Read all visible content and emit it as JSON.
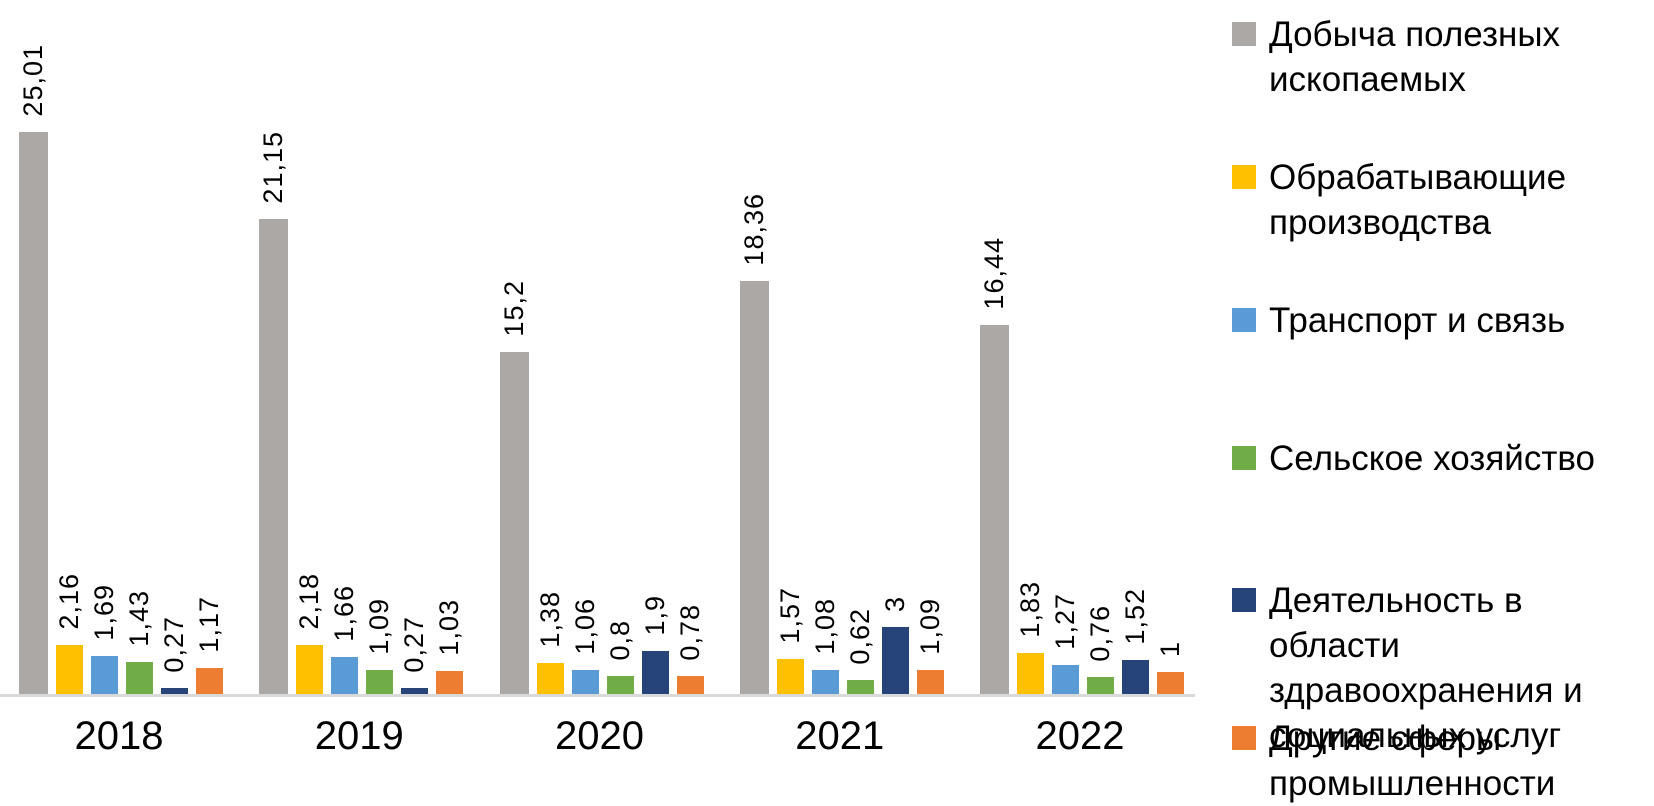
{
  "chart_data": {
    "type": "bar",
    "title": "",
    "xlabel": "",
    "ylabel": "",
    "grid": false,
    "legend_position": "right",
    "ylim": [
      0,
      26
    ],
    "decimal_separator": ",",
    "categories": [
      "2018",
      "2019",
      "2020",
      "2021",
      "2022"
    ],
    "series": [
      {
        "name": "Добыча полезных ископаемых",
        "color": "#aca8a5",
        "values": [
          25.01,
          21.15,
          15.2,
          18.36,
          16.44
        ],
        "labels": [
          "25,01",
          "21,15",
          "15,2",
          "18,36",
          "16,44"
        ]
      },
      {
        "name": "Обрабатывающие производства",
        "color": "#ffc000",
        "values": [
          2.16,
          2.18,
          1.38,
          1.57,
          1.83
        ],
        "labels": [
          "2,16",
          "2,18",
          "1,38",
          "1,57",
          "1,83"
        ]
      },
      {
        "name": "Транспорт и связь",
        "color": "#5b9bd5",
        "values": [
          1.69,
          1.66,
          1.06,
          1.08,
          1.27
        ],
        "labels": [
          "1,69",
          "1,66",
          "1,06",
          "1,08",
          "1,27"
        ]
      },
      {
        "name": "Сельское хозяйство",
        "color": "#70ad47",
        "values": [
          1.43,
          1.09,
          0.8,
          0.62,
          0.76
        ],
        "labels": [
          "1,43",
          "1,09",
          "0,8",
          "0,62",
          "0,76"
        ]
      },
      {
        "name": "Деятельность в области здравоохранения и социальных услуг",
        "color": "#264478",
        "values": [
          0.27,
          0.27,
          1.9,
          3,
          1.52
        ],
        "labels": [
          "0,27",
          "0,27",
          "1,9",
          "3",
          "1,52"
        ]
      },
      {
        "name": "Другие сферы промышленности",
        "color": "#ed7d31",
        "values": [
          1.17,
          1.03,
          0.78,
          1.09,
          1
        ],
        "labels": [
          "1,17",
          "1,03",
          "0,78",
          "1,09",
          "1"
        ]
      }
    ],
    "axis_color": "#d9d9d9",
    "label_color": "#000000"
  }
}
